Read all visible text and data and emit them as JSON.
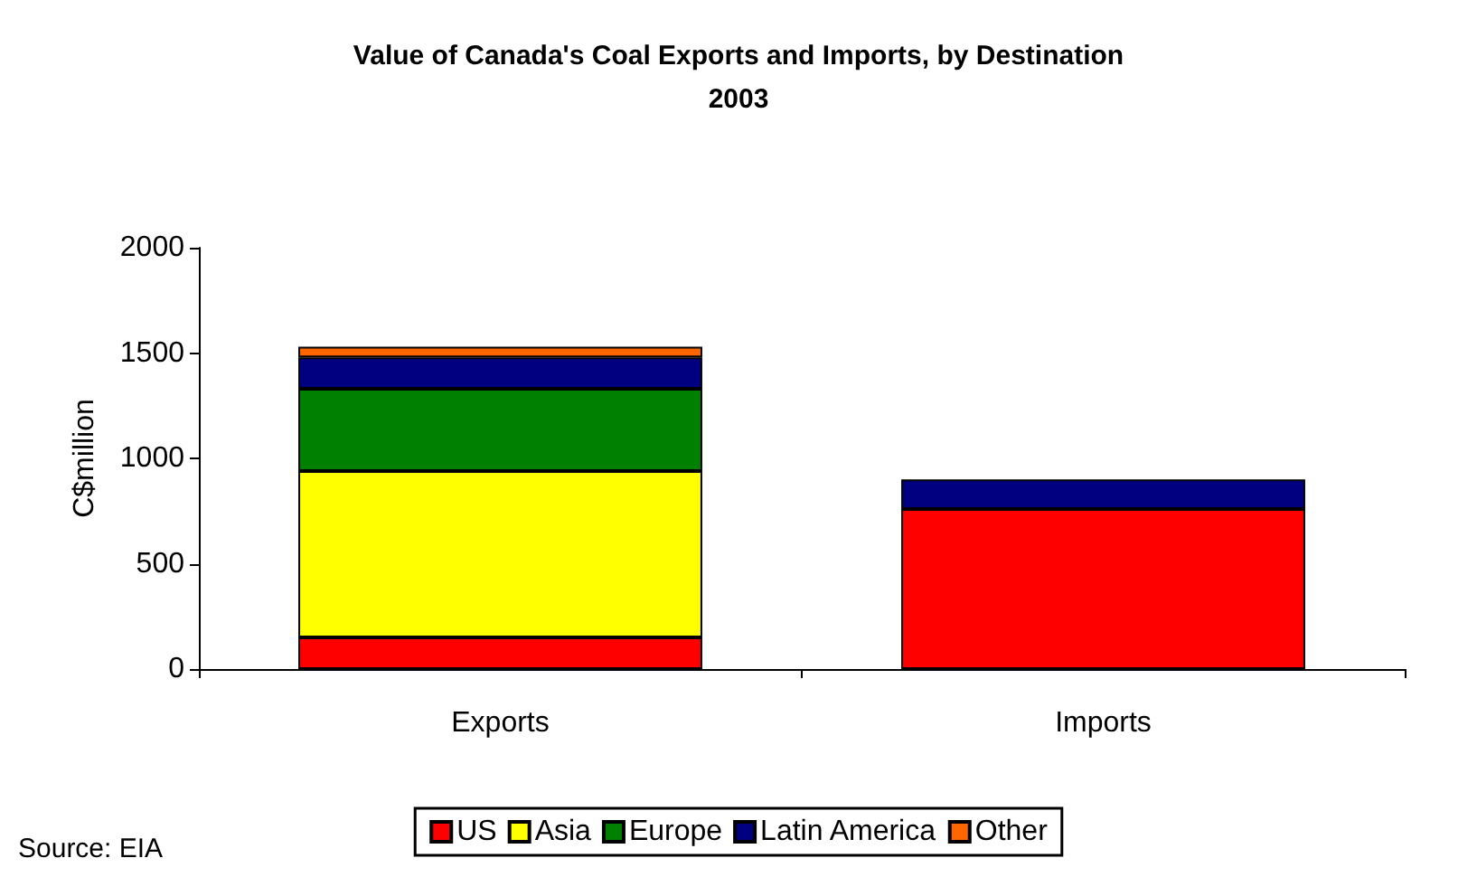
{
  "chart_data": {
    "type": "bar",
    "title": "Value of Canada's Coal Exports and Imports, by Destination\n2003",
    "ylabel": "C$million",
    "categories": [
      "Exports",
      "Imports"
    ],
    "stacked": true,
    "series": [
      {
        "name": "US",
        "color": "#ff0000",
        "values": [
          150,
          760
        ]
      },
      {
        "name": "Asia",
        "color": "#ffff00",
        "values": [
          790,
          null
        ]
      },
      {
        "name": "Europe",
        "color": "#008000",
        "values": [
          390,
          null
        ]
      },
      {
        "name": "Latin America",
        "color": "#000080",
        "values": [
          150,
          140
        ]
      },
      {
        "name": "Other",
        "color": "#ff6600",
        "values": [
          50,
          null
        ]
      }
    ],
    "ylim": [
      0,
      2000
    ],
    "yticks": [
      0,
      500,
      1000,
      1500,
      2000
    ],
    "grid": false,
    "legend": "bottom",
    "annotations": [
      "Source: EIA"
    ]
  }
}
